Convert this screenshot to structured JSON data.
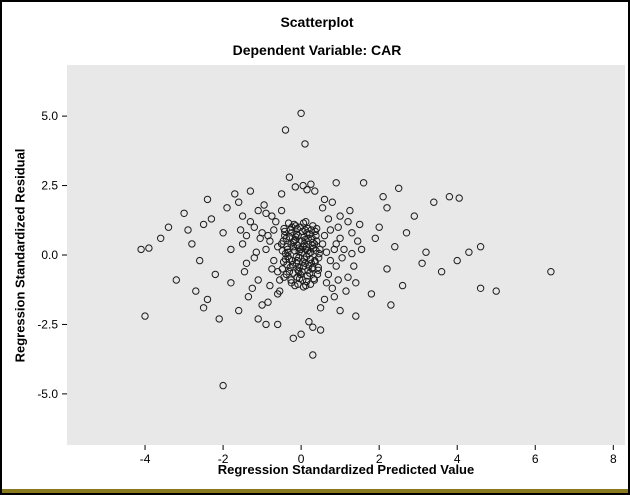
{
  "chart_data": {
    "type": "scatter",
    "title": "Scatterplot",
    "subtitle": "Dependent Variable: CAR",
    "xlabel": "Regression Standardized Predicted Value",
    "ylabel": "Regression Standardized Residual",
    "xlim": [
      -6,
      8.3
    ],
    "ylim": [
      -6.84,
      6.84
    ],
    "grid": "off",
    "legend": "none",
    "x_ticks": {
      "values": [
        -4,
        -2,
        0,
        2,
        4,
        6,
        8
      ],
      "labels": [
        "-4",
        "-2",
        "0",
        "2",
        "4",
        "6",
        "8"
      ]
    },
    "y_ticks": {
      "values": [
        5,
        2.5,
        0,
        -2.5,
        -5
      ],
      "labels": [
        "5.0",
        "2.5",
        "0.0",
        "-2.5",
        "-5.0"
      ]
    },
    "plot_background": "#e8e8e8",
    "marker": {
      "shape": "open-circle",
      "radius": 3.2,
      "stroke": "#1c1c1c"
    },
    "points": [
      [
        -0.05,
        0.12
      ],
      [
        0.1,
        -0.3
      ],
      [
        -0.2,
        0.45
      ],
      [
        0.02,
        -0.6
      ],
      [
        0.15,
        0.8
      ],
      [
        -0.3,
        -0.15
      ],
      [
        0.05,
        0.3
      ],
      [
        -0.1,
        -0.8
      ],
      [
        0.25,
        0.1
      ],
      [
        -0.15,
        0.55
      ],
      [
        0.3,
        -0.45
      ],
      [
        -0.02,
        1.0
      ],
      [
        0.12,
        -1.1
      ],
      [
        -0.35,
        0.2
      ],
      [
        0.08,
        0.65
      ],
      [
        -0.22,
        -0.35
      ],
      [
        0.18,
        0.95
      ],
      [
        -0.08,
        -0.55
      ],
      [
        0.28,
        0.35
      ],
      [
        -0.4,
        0.05
      ],
      [
        0.35,
        -0.2
      ],
      [
        -0.12,
        0.75
      ],
      [
        0.04,
        -0.9
      ],
      [
        -0.28,
        0.9
      ],
      [
        0.22,
        -0.65
      ],
      [
        -0.45,
        -0.25
      ],
      [
        0.4,
        0.5
      ],
      [
        -0.06,
        0.25
      ],
      [
        0.14,
        -0.05
      ],
      [
        -0.18,
        1.1
      ],
      [
        0.32,
        -0.85
      ],
      [
        -0.5,
        0.4
      ],
      [
        0.45,
        -0.1
      ],
      [
        -0.25,
        -1.0
      ],
      [
        0.06,
        1.15
      ],
      [
        -0.38,
        0.6
      ],
      [
        0.2,
        0.05
      ],
      [
        -0.1,
        -0.2
      ],
      [
        0.02,
        0.5
      ],
      [
        -0.3,
        -0.6
      ],
      [
        0.38,
        0.7
      ],
      [
        -0.48,
        -0.5
      ],
      [
        0.26,
        -0.3
      ],
      [
        -0.16,
        0.15
      ],
      [
        0.1,
        0.9
      ],
      [
        -0.05,
        -0.45
      ],
      [
        0.48,
        0.2
      ],
      [
        -0.42,
        0.85
      ],
      [
        0.16,
        -0.75
      ],
      [
        -0.2,
        0.3
      ],
      [
        0.3,
        1.05
      ],
      [
        -0.08,
        -1.05
      ],
      [
        0.44,
        -0.55
      ],
      [
        -0.34,
        -0.05
      ],
      [
        0.08,
        0.4
      ],
      [
        -0.14,
        0.65
      ],
      [
        0.24,
        -0.15
      ],
      [
        -0.46,
        0.5
      ],
      [
        0.36,
        0.85
      ],
      [
        -0.02,
        -0.7
      ],
      [
        0.12,
        0.2
      ],
      [
        -0.26,
        -0.9
      ],
      [
        0.46,
        0.05
      ],
      [
        -0.36,
        0.3
      ],
      [
        0.04,
        -0.25
      ],
      [
        -0.1,
        0.95
      ],
      [
        0.28,
        -0.5
      ],
      [
        -0.44,
        -0.8
      ],
      [
        0.18,
        0.6
      ],
      [
        -0.06,
        -0.1
      ],
      [
        0.34,
        0.4
      ],
      [
        -0.24,
        0.8
      ],
      [
        0.06,
        -0.4
      ],
      [
        -0.32,
        1.15
      ],
      [
        0.42,
        -0.7
      ],
      [
        -0.12,
        -0.3
      ],
      [
        0.22,
        0.75
      ],
      [
        -0.4,
        -0.15
      ],
      [
        0.14,
        -0.95
      ],
      [
        -0.18,
        0.5
      ],
      [
        0.02,
        0.1
      ],
      [
        -0.28,
        -0.45
      ],
      [
        0.32,
        0.25
      ],
      [
        -0.08,
        0.7
      ],
      [
        0.24,
        -1.05
      ],
      [
        -0.48,
        0.15
      ],
      [
        0.1,
        0.55
      ],
      [
        -0.2,
        -0.65
      ],
      [
        0.4,
        0.95
      ],
      [
        -0.36,
        -0.35
      ],
      [
        0.16,
        0.15
      ],
      [
        -0.04,
        -0.85
      ],
      [
        0.3,
        0.45
      ],
      [
        -0.14,
        1.05
      ],
      [
        0.08,
        -0.15
      ],
      [
        -0.3,
        0.65
      ],
      [
        0.2,
        -0.4
      ],
      [
        -0.44,
        0.95
      ],
      [
        0.36,
        -0.25
      ],
      [
        -0.1,
        0.35
      ],
      [
        0.26,
        0.9
      ],
      [
        -0.22,
        -0.2
      ],
      [
        0.44,
        -0.45
      ],
      [
        -0.34,
        0.1
      ],
      [
        0.12,
        1.2
      ],
      [
        -0.06,
        -0.6
      ],
      [
        0.38,
        0.15
      ],
      [
        -0.16,
        -1.1
      ],
      [
        0.04,
        0.85
      ],
      [
        -0.26,
        0.4
      ],
      [
        0.18,
        -0.55
      ],
      [
        -0.42,
        0.7
      ],
      [
        0.34,
        -0.9
      ],
      [
        -0.02,
        0.2
      ],
      [
        0.28,
        0.6
      ],
      [
        -0.38,
        -0.7
      ],
      [
        0.14,
        0.3
      ],
      [
        -0.12,
        -0.05
      ],
      [
        0.06,
        -1.15
      ],
      [
        -0.24,
        1.0
      ],
      [
        -0.8,
        0.5
      ],
      [
        0.9,
        -0.4
      ],
      [
        -1.2,
        1.0
      ],
      [
        0.7,
        1.3
      ],
      [
        -0.6,
        -1.4
      ],
      [
        1.1,
        0.2
      ],
      [
        -1.4,
        -0.3
      ],
      [
        0.6,
        -1.6
      ],
      [
        -0.9,
        1.5
      ],
      [
        1.3,
        0.8
      ],
      [
        -0.7,
        0.9
      ],
      [
        0.8,
        -1.2
      ],
      [
        -1.1,
        -0.9
      ],
      [
        1.0,
        1.4
      ],
      [
        -1.5,
        0.4
      ],
      [
        0.65,
        0.1
      ],
      [
        -0.75,
        -0.5
      ],
      [
        1.2,
        -0.8
      ],
      [
        -1.3,
        1.2
      ],
      [
        0.55,
        1.7
      ],
      [
        -0.85,
        -1.7
      ],
      [
        1.45,
        0.5
      ],
      [
        -0.6,
        0.3
      ],
      [
        0.75,
        -0.2
      ],
      [
        -1.0,
        0.8
      ],
      [
        0.95,
        1.0
      ],
      [
        -1.25,
        -1.2
      ],
      [
        1.35,
        -0.4
      ],
      [
        -0.55,
        -0.9
      ],
      [
        0.6,
        0.7
      ],
      [
        -0.95,
        1.8
      ],
      [
        1.5,
        1.1
      ],
      [
        -1.45,
        -0.6
      ],
      [
        0.85,
        -1.5
      ],
      [
        -0.65,
        1.2
      ],
      [
        1.05,
        -0.1
      ],
      [
        -1.15,
        0.1
      ],
      [
        0.7,
        -0.7
      ],
      [
        -0.8,
        -1.1
      ],
      [
        1.25,
        1.6
      ],
      [
        -1.55,
        0.9
      ],
      [
        0.9,
        0.4
      ],
      [
        -0.7,
        -0.2
      ],
      [
        1.15,
        -1.3
      ],
      [
        -1.05,
        0.6
      ],
      [
        0.5,
        -1.9
      ],
      [
        -0.9,
        0.2
      ],
      [
        1.4,
        -1.0
      ],
      [
        -1.35,
        -1.5
      ],
      [
        0.8,
        1.9
      ],
      [
        -0.5,
        1.6
      ],
      [
        1.55,
        0.2
      ],
      [
        -1.2,
        -0.1
      ],
      [
        0.65,
        -1.0
      ],
      [
        -0.85,
        0.7
      ],
      [
        1.0,
        0.6
      ],
      [
        -1.5,
        1.4
      ],
      [
        0.75,
        0.9
      ],
      [
        -0.6,
        -0.6
      ],
      [
        1.3,
        0.05
      ],
      [
        -1.0,
        -1.8
      ],
      [
        0.55,
        0.4
      ],
      [
        -1.4,
        0.7
      ],
      [
        0.95,
        -0.9
      ],
      [
        -0.75,
        1.4
      ],
      [
        1.2,
        1.2
      ],
      [
        -0.55,
        -1.3
      ],
      [
        0.85,
        0.2
      ],
      [
        -1.1,
        1.6
      ],
      [
        0.6,
        2.0
      ],
      [
        -2.0,
        0.8
      ],
      [
        2.2,
        -0.5
      ],
      [
        -2.5,
        1.1
      ],
      [
        2.0,
        1.0
      ],
      [
        -1.8,
        -1.0
      ],
      [
        2.4,
        0.3
      ],
      [
        -2.2,
        -0.7
      ],
      [
        1.8,
        -1.4
      ],
      [
        -2.8,
        0.4
      ],
      [
        2.6,
        -1.1
      ],
      [
        -1.9,
        1.7
      ],
      [
        2.1,
        2.1
      ],
      [
        -2.4,
        -1.6
      ],
      [
        1.9,
        0.6
      ],
      [
        -3.0,
        1.5
      ],
      [
        2.9,
        1.4
      ],
      [
        -2.6,
        -0.2
      ],
      [
        2.3,
        -1.8
      ],
      [
        -3.4,
        1.0
      ],
      [
        3.1,
        -0.3
      ],
      [
        -2.1,
        -2.3
      ],
      [
        2.7,
        0.8
      ],
      [
        -1.7,
        2.2
      ],
      [
        3.4,
        1.9
      ],
      [
        -3.2,
        -0.9
      ],
      [
        3.2,
        0.1
      ],
      [
        -2.3,
        1.3
      ],
      [
        3.6,
        -0.6
      ],
      [
        -2.7,
        -1.3
      ],
      [
        3.8,
        2.1
      ],
      [
        -1.8,
        0.2
      ],
      [
        4.0,
        -0.2
      ],
      [
        -2.9,
        0.9
      ],
      [
        4.3,
        0.1
      ],
      [
        -2.0,
        -4.7
      ],
      [
        4.6,
        -1.2
      ],
      [
        -4.1,
        0.2
      ],
      [
        5.0,
        -1.3
      ],
      [
        -4.0,
        -2.2
      ],
      [
        6.4,
        -0.6
      ],
      [
        -3.6,
        0.6
      ],
      [
        4.6,
        0.3
      ],
      [
        -1.6,
        -2.0
      ],
      [
        2.5,
        2.4
      ],
      [
        0.0,
        5.1
      ],
      [
        -0.4,
        4.5
      ],
      [
        0.1,
        4.0
      ],
      [
        0.3,
        -3.6
      ],
      [
        -0.2,
        -3.0
      ],
      [
        1.6,
        2.6
      ],
      [
        -1.3,
        2.3
      ],
      [
        1.4,
        -2.2
      ],
      [
        -0.9,
        -2.5
      ],
      [
        0.9,
        2.6
      ],
      [
        -0.3,
        2.8
      ],
      [
        0.5,
        -2.7
      ],
      [
        1.0,
        -2.0
      ],
      [
        -1.6,
        1.9
      ],
      [
        2.2,
        1.7
      ],
      [
        -2.4,
        2.0
      ],
      [
        0.05,
        2.5
      ],
      [
        -0.15,
        2.45
      ],
      [
        0.25,
        2.55
      ],
      [
        0.35,
        2.3
      ],
      [
        -0.5,
        2.2
      ],
      [
        0.15,
        2.35
      ],
      [
        -0.6,
        -2.5
      ],
      [
        0.0,
        -2.85
      ],
      [
        0.3,
        -2.6
      ],
      [
        -1.1,
        -2.3
      ],
      [
        0.2,
        -2.4
      ],
      [
        -2.5,
        -1.9
      ],
      [
        -3.9,
        0.25
      ],
      [
        4.05,
        2.05
      ]
    ]
  },
  "frame": {
    "border_color": "#000000",
    "bottom_strip_color": "#8a7a1f"
  }
}
